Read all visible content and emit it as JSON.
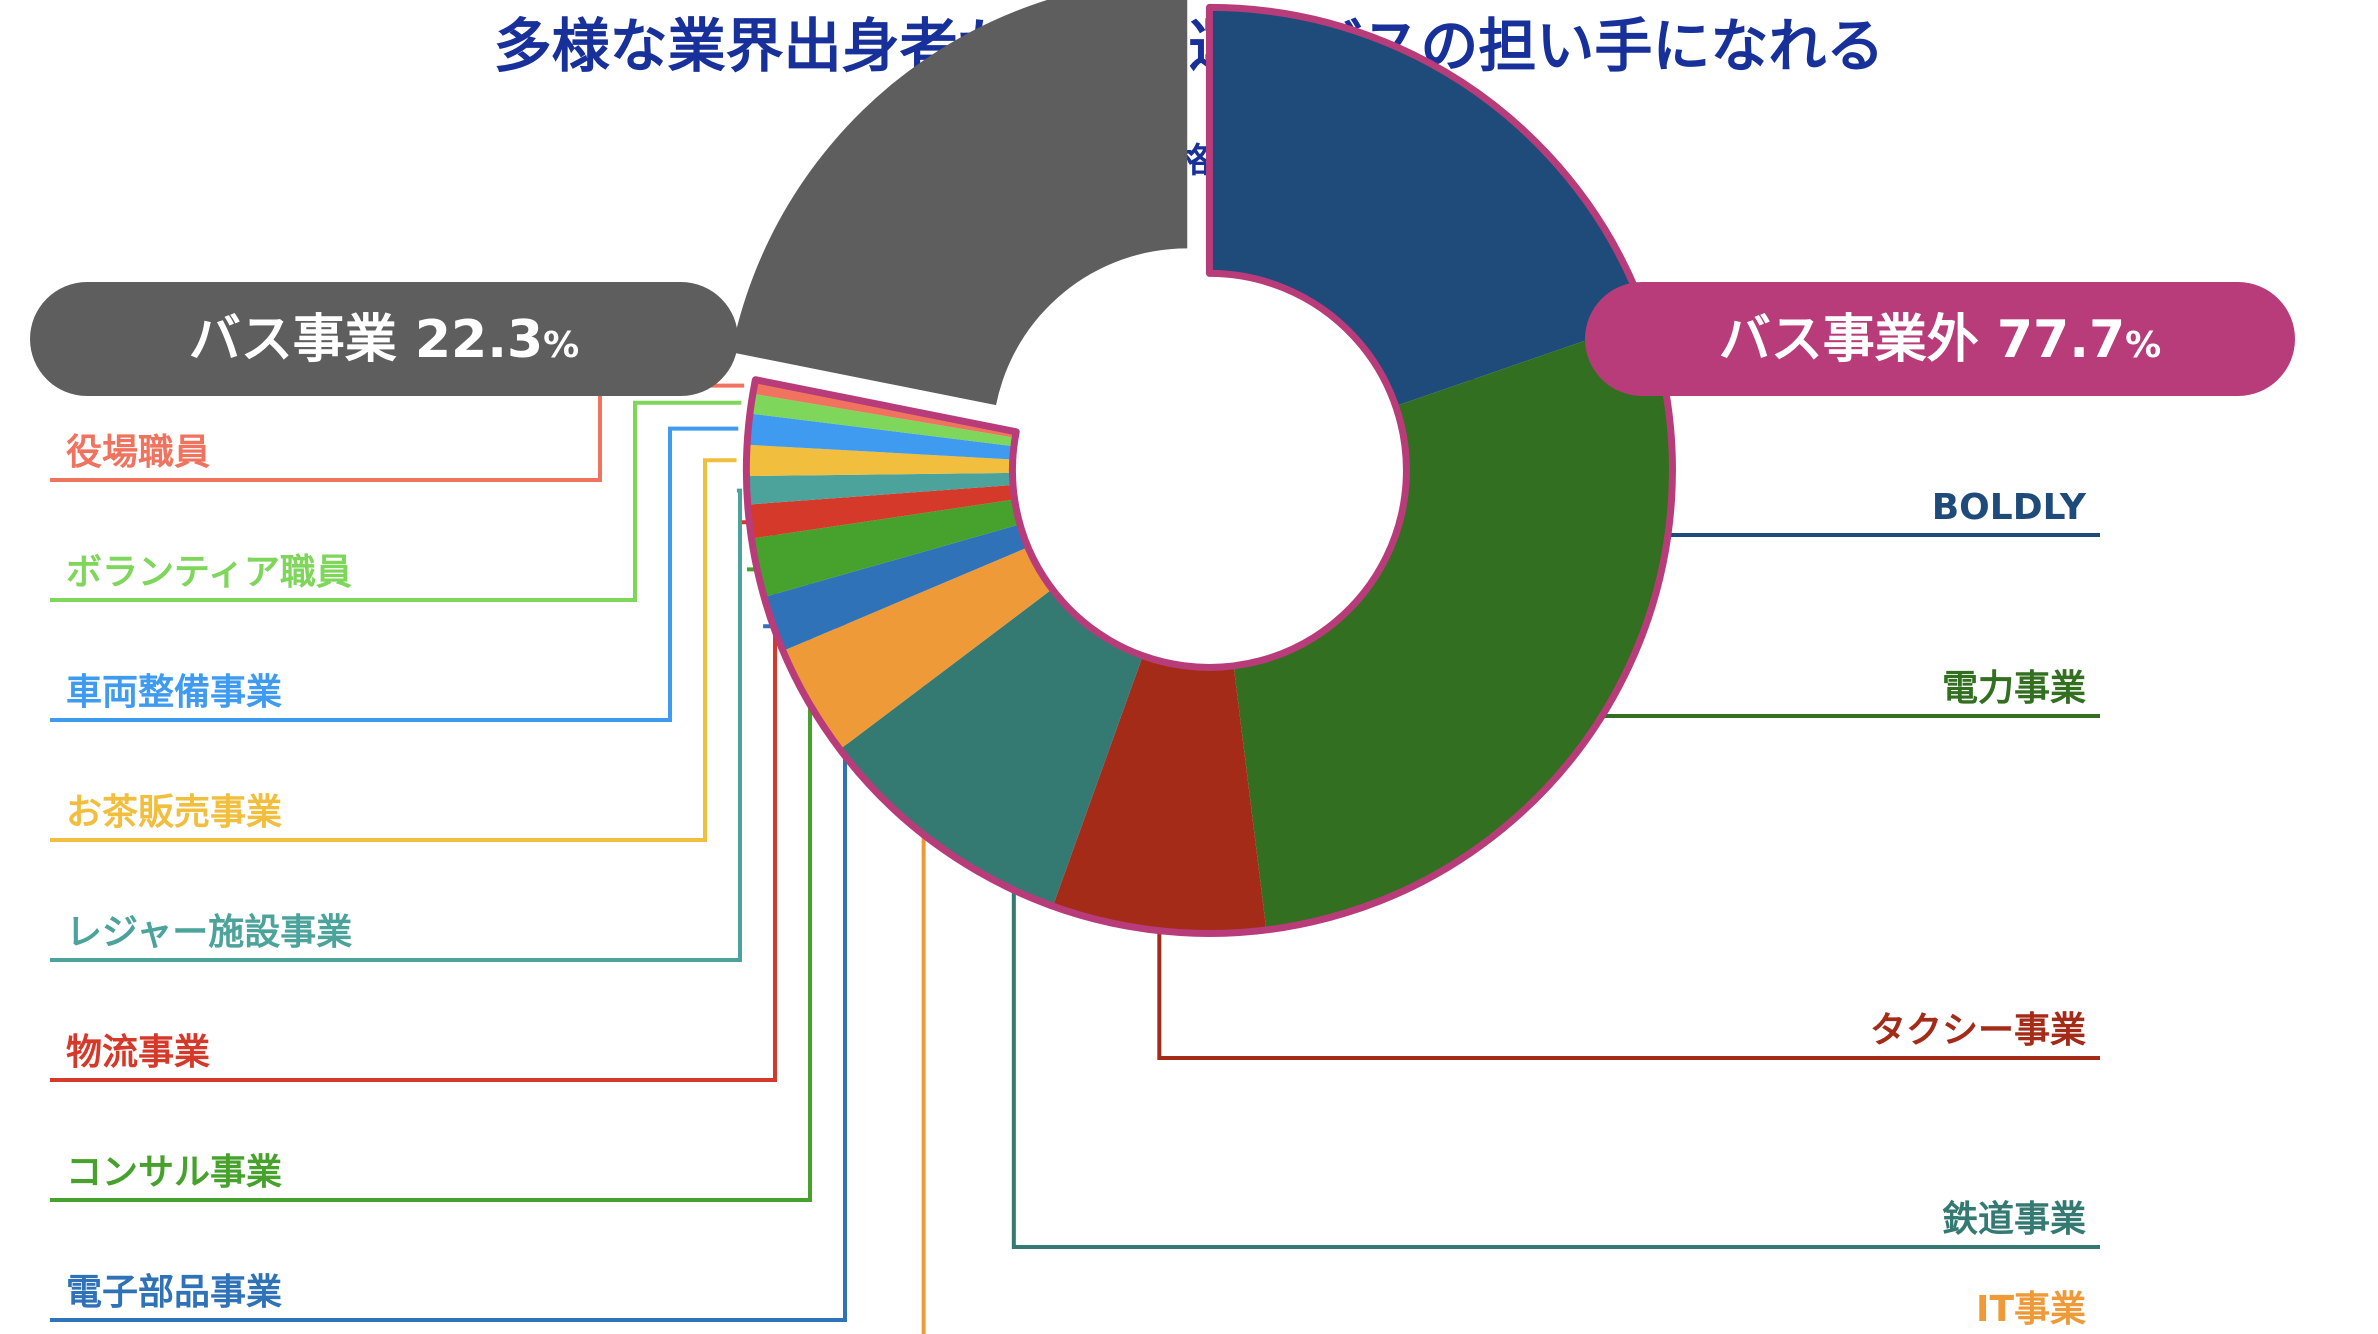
{
  "title": "多様な業界出身者が、自動運転バスの担い手になれる",
  "subtitle": "■ オペレーター資格取得者の業種内訳",
  "chart_data": {
    "type": "pie",
    "variant": "donut",
    "title": "多様な業界出身者が、自動運転バスの担い手になれる",
    "subtitle": "オペレーター資格取得者の業種内訳",
    "groups": [
      {
        "name": "バス事業",
        "value_label": "22.3",
        "unit": "%",
        "value": 22.3,
        "color": "#5e5e5e"
      },
      {
        "name": "バス事業外",
        "value_label": "77.7",
        "unit": "%",
        "value": 77.7,
        "color": "#b83c79"
      }
    ],
    "slices": [
      {
        "name": "バス事業",
        "value": 22.3,
        "color": "#5e5e5e",
        "group": "bus",
        "side": ""
      },
      {
        "name": "BOLDLY",
        "value": 20.1,
        "color": "#1f4b7a",
        "group": "other",
        "side": "right"
      },
      {
        "name": "電力事業",
        "value": 28.9,
        "color": "#326f20",
        "group": "other",
        "side": "right"
      },
      {
        "name": "タクシー事業",
        "value": 7.6,
        "color": "#a52b19",
        "group": "other",
        "side": "right"
      },
      {
        "name": "鉄道事業",
        "value": 9.4,
        "color": "#347a73",
        "group": "other",
        "side": "right"
      },
      {
        "name": "IT事業",
        "value": 4.0,
        "color": "#ef9a38",
        "group": "other",
        "side": "right"
      },
      {
        "name": "電子部品事業",
        "value": 2.0,
        "color": "#2f72b7",
        "group": "other",
        "side": "left"
      },
      {
        "name": "コンサル事業",
        "value": 2.1,
        "color": "#46a22c",
        "group": "other",
        "side": "left"
      },
      {
        "name": "物流事業",
        "value": 1.2,
        "color": "#d5392a",
        "group": "other",
        "side": "left"
      },
      {
        "name": "レジャー施設事業",
        "value": 1.0,
        "color": "#4ca39b",
        "group": "other",
        "side": "left"
      },
      {
        "name": "お茶販売事業",
        "value": 1.1,
        "color": "#f1be3e",
        "group": "other",
        "side": "left"
      },
      {
        "name": "車両整備事業",
        "value": 1.1,
        "color": "#3f9bf0",
        "group": "other",
        "side": "left"
      },
      {
        "name": "ボランティア職員",
        "value": 0.7,
        "color": "#7ed65a",
        "group": "other",
        "side": "left"
      },
      {
        "name": "役場職員",
        "value": 0.5,
        "color": "#ef735e",
        "group": "other",
        "side": "left"
      }
    ],
    "legend": "callout-labels"
  }
}
